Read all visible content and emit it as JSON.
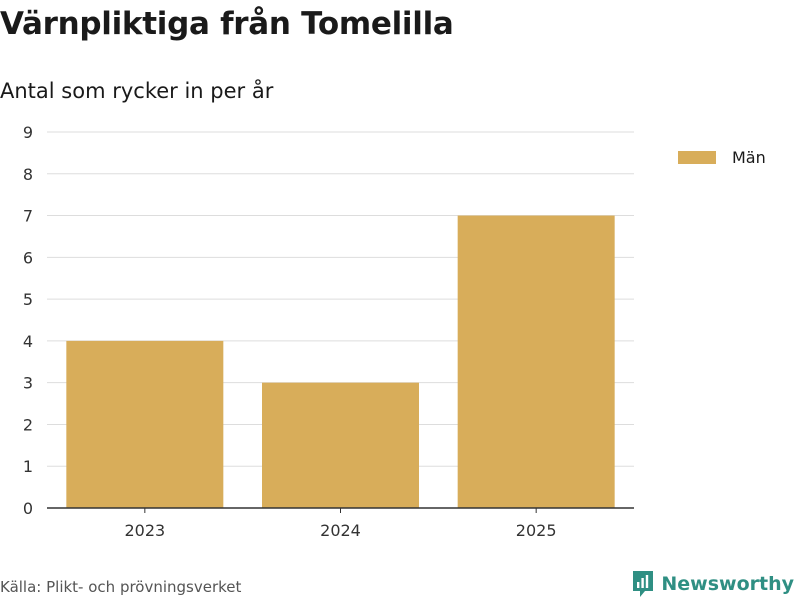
{
  "colors": {
    "bar": "#d8ad5a",
    "grid": "#dddddd",
    "axis": "#333333",
    "brand": "#2f8f83"
  },
  "header": {
    "title": "Värnpliktiga från Tomelilla",
    "subtitle": "Antal som rycker in per år"
  },
  "chart_data": {
    "type": "bar",
    "title": "Värnpliktiga från Tomelilla",
    "subtitle": "Antal som rycker in per år",
    "categories": [
      "2023",
      "2024",
      "2025"
    ],
    "series": [
      {
        "name": "Män",
        "values": [
          4,
          3,
          7
        ]
      }
    ],
    "xlabel": "",
    "ylabel": "",
    "ylim": [
      0,
      9
    ],
    "yticks": [
      0,
      1,
      2,
      3,
      4,
      5,
      6,
      7,
      8,
      9
    ],
    "grid": true,
    "legend_position": "right"
  },
  "legend": {
    "items": [
      {
        "label": "Män",
        "color": "#d8ad5a"
      }
    ]
  },
  "footer": {
    "source": "Källa: Plikt- och prövningsverket",
    "brand": "Newsworthy",
    "brand_icon": "newsworthy-logo-icon"
  }
}
